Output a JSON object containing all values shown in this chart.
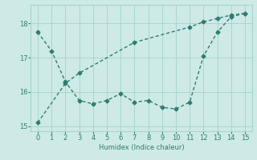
{
  "line1_x": [
    0,
    1,
    2,
    3,
    4,
    5,
    6,
    7,
    8,
    9,
    10,
    11,
    12,
    13,
    14,
    15
  ],
  "line1_y": [
    17.75,
    17.2,
    16.3,
    15.75,
    15.65,
    15.75,
    15.95,
    15.7,
    15.75,
    15.55,
    15.5,
    15.7,
    17.05,
    17.75,
    18.2,
    18.3
  ],
  "line2_x": [
    0,
    2,
    3,
    7,
    11,
    12,
    13,
    14,
    15
  ],
  "line2_y": [
    15.1,
    16.25,
    16.55,
    17.45,
    17.9,
    18.05,
    18.15,
    18.25,
    18.3
  ],
  "line_color": "#2d7d72",
  "bg_color": "#ceeae6",
  "grid_color": "#a8d5d0",
  "xlabel": "Humidex (Indice chaleur)",
  "xlim": [
    -0.5,
    15.5
  ],
  "ylim": [
    14.85,
    18.55
  ],
  "yticks": [
    15,
    16,
    17,
    18
  ],
  "xticks": [
    0,
    1,
    2,
    3,
    4,
    5,
    6,
    7,
    8,
    9,
    10,
    11,
    12,
    13,
    14,
    15
  ],
  "marker": "D",
  "markersize": 2.5,
  "linewidth": 1.0
}
